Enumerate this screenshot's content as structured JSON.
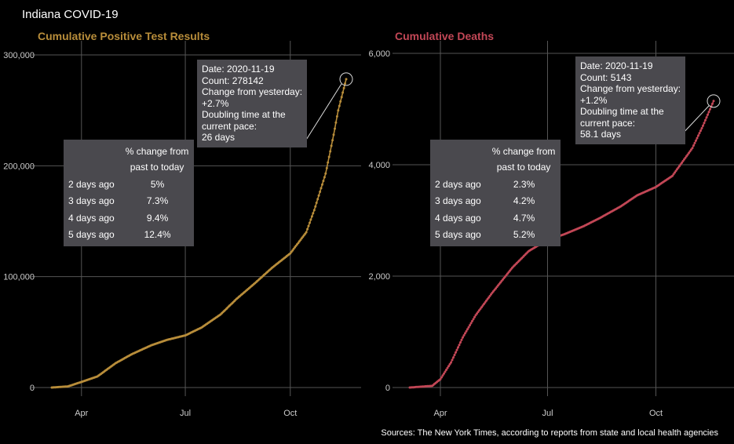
{
  "page_title": "Indiana COVID-19",
  "sources": "Sources: The New York Times, according to reports from state and local health agencies",
  "colors": {
    "cases": "#b88d3a",
    "deaths": "#c24756",
    "grid": "#555555",
    "box": "#4a494e"
  },
  "chart_data": [
    {
      "type": "line",
      "title": "Cumulative Positive Test Results",
      "x_range": [
        "2020-03-06",
        "2020-11-19"
      ],
      "ylim": [
        0,
        330000
      ],
      "xticks": [
        {
          "date": "2020-04-01",
          "label": "Apr"
        },
        {
          "date": "2020-07-01",
          "label": "Jul"
        },
        {
          "date": "2020-10-01",
          "label": "Oct"
        }
      ],
      "yticks": [
        {
          "value": 0,
          "label": "0"
        },
        {
          "value": 100000,
          "label": "100,000"
        },
        {
          "value": 200000,
          "label": "200,000"
        },
        {
          "value": 300000,
          "label": "300,000"
        }
      ],
      "x": [
        "2020-03-06",
        "2020-03-20",
        "2020-04-01",
        "2020-04-15",
        "2020-05-01",
        "2020-05-15",
        "2020-06-01",
        "2020-06-15",
        "2020-07-01",
        "2020-07-15",
        "2020-08-01",
        "2020-08-15",
        "2020-09-01",
        "2020-09-15",
        "2020-10-01",
        "2020-10-15",
        "2020-10-22",
        "2020-11-01",
        "2020-11-08",
        "2020-11-12",
        "2020-11-15",
        "2020-11-19"
      ],
      "y": [
        0,
        1000,
        5000,
        10000,
        22000,
        30000,
        38000,
        43000,
        47000,
        54000,
        66000,
        80000,
        95000,
        108000,
        121000,
        140000,
        160000,
        193000,
        228000,
        250000,
        262000,
        278142
      ],
      "callout": {
        "lines": [
          "Date: 2020-11-19",
          "Count: 278142",
          "Change from yesterday:",
          "+2.7%",
          "Doubling time at the",
          "current pace:",
          "26 days"
        ]
      },
      "pct_table": {
        "header": [
          "% change from",
          "past to today"
        ],
        "rows": [
          [
            "2 days ago",
            "5%"
          ],
          [
            "3 days ago",
            "7.3%"
          ],
          [
            "4 days ago",
            "9.4%"
          ],
          [
            "5 days ago",
            "12.4%"
          ]
        ]
      }
    },
    {
      "type": "line",
      "title": "Cumulative Deaths",
      "x_range": [
        "2020-03-06",
        "2020-11-19"
      ],
      "ylim": [
        0,
        6000
      ],
      "xticks": [
        {
          "date": "2020-04-01",
          "label": "Apr"
        },
        {
          "date": "2020-07-01",
          "label": "Jul"
        },
        {
          "date": "2020-10-01",
          "label": "Oct"
        }
      ],
      "yticks": [
        {
          "value": 0,
          "label": "0"
        },
        {
          "value": 2000,
          "label": "2,000"
        },
        {
          "value": 4000,
          "label": "4,000"
        },
        {
          "value": 6000,
          "label": "6,000"
        }
      ],
      "x": [
        "2020-03-06",
        "2020-03-25",
        "2020-04-01",
        "2020-04-10",
        "2020-04-20",
        "2020-05-01",
        "2020-05-15",
        "2020-06-01",
        "2020-06-15",
        "2020-07-01",
        "2020-07-15",
        "2020-08-01",
        "2020-08-15",
        "2020-09-01",
        "2020-09-15",
        "2020-10-01",
        "2020-10-15",
        "2020-11-01",
        "2020-11-10",
        "2020-11-19"
      ],
      "y": [
        0,
        30,
        150,
        450,
        900,
        1300,
        1700,
        2150,
        2450,
        2650,
        2750,
        2900,
        3050,
        3250,
        3450,
        3600,
        3800,
        4300,
        4700,
        5143
      ],
      "callout": {
        "lines": [
          "Date: 2020-11-19",
          "Count: 5143",
          "Change from yesterday:",
          "+1.2%",
          "Doubling time at the",
          "current pace:",
          "58.1 days"
        ]
      },
      "pct_table": {
        "header": [
          "% change from",
          "past to today"
        ],
        "rows": [
          [
            "2 days ago",
            "2.3%"
          ],
          [
            "3 days ago",
            "4.2%"
          ],
          [
            "4 days ago",
            "4.7%"
          ],
          [
            "5 days ago",
            "5.2%"
          ]
        ]
      }
    }
  ]
}
